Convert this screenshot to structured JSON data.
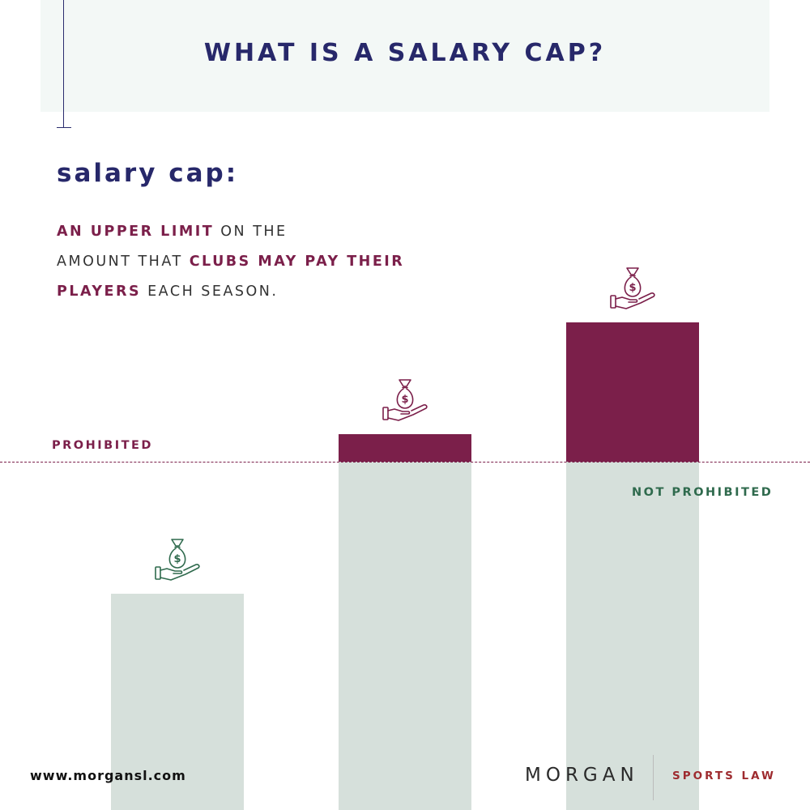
{
  "header": {
    "title": "WHAT IS A SALARY CAP?"
  },
  "definition": {
    "term": "salary cap:",
    "line1": [
      {
        "text": "AN UPPER LIMIT",
        "emphasis": true
      },
      {
        "text": " ON THE",
        "emphasis": false
      }
    ],
    "line2": [
      {
        "text": "AMOUNT THAT ",
        "emphasis": false
      },
      {
        "text": "CLUBS MAY PAY THEIR",
        "emphasis": true
      }
    ],
    "line3": [
      {
        "text": "PLAYERS",
        "emphasis": true
      },
      {
        "text": " EACH SEASON.",
        "emphasis": false
      }
    ]
  },
  "labels": {
    "above_cap": "PROHIBITED",
    "below_cap": "NOT PROHIBITED"
  },
  "icons": {
    "money": "money-bag-hand-icon"
  },
  "illustration": {
    "payroll_levels": [
      0.62,
      1.08,
      1.4
    ],
    "cap_level": 1.0
  },
  "footer": {
    "website": "www.morgansl.com",
    "logo_main": "MORGAN",
    "logo_sub": "SPORTS LAW"
  },
  "colors": {
    "navy": "#27286a",
    "maroon": "#7b1f4a",
    "green": "#2f6a4d",
    "sage": "#d6e0db",
    "header_bg": "#f3f8f6",
    "logo_red": "#9e2b2f"
  }
}
